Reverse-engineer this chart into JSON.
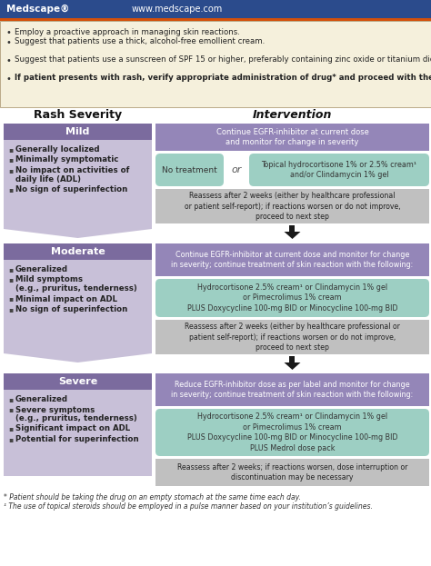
{
  "header_bg": "#2B4B8C",
  "orange_bar": "#D4500A",
  "medscape_text": "Medscape®",
  "website_text": "www.medscape.com",
  "intro_bg": "#F5F0DC",
  "intro_border": "#BBAA88",
  "intro_bullets": [
    "Employ a proactive approach in managing skin reactions.",
    "Suggest that patients use a thick, alcohol-free emollient cream.",
    "Suggest that patients use a sunscreen of SPF 15 or higher, preferably containing zinc oxide or titanium dioxide.",
    "If patient presents with rash, verify appropriate administration of drug* and proceed with the following therapy algorithm."
  ],
  "col_hdr_left": "Rash Severity",
  "col_hdr_right": "Intervention",
  "sev_hdr_color": "#7B6B9E",
  "sev_body_color": "#C8C0D8",
  "sev_hdr_text": "#FFFFFF",
  "mild_header": "Mild",
  "mild_bullets": [
    "Generally localized",
    "Minimally symptomatic",
    "No impact on activities of\ndaily life (ADL)",
    "No sign of superinfection"
  ],
  "moderate_header": "Moderate",
  "moderate_bullets": [
    "Generalized",
    "Mild symptoms\n(e.g., pruritus, tenderness)",
    "Minimal impact on ADL",
    "No sign of superinfection"
  ],
  "severe_header": "Severe",
  "severe_bullets": [
    "Generalized",
    "Severe symptoms\n(e.g., pruritus, tenderness)",
    "Significant impact on ADL",
    "Potential for superinfection"
  ],
  "purple_color": "#9486B8",
  "teal_color": "#9DCFC3",
  "gray_color": "#C0C0C0",
  "mild_purple": "Continue EGFR-inhibitor at current dose\nand monitor for change in severity",
  "mild_teal_left": "No treatment",
  "mild_or": "or",
  "mild_teal_right": "Topical hydrocortisone 1% or 2.5% cream¹\nand/or Clindamycin 1% gel",
  "mild_gray": "Reassess after 2 weeks (either by healthcare professional\nor patient self-report); if reactions worsen or do not improve,\nproceed to next step",
  "moderate_purple": "Continue EGFR-inhibitor at current dose and monitor for change\nin severity; continue treatment of skin reaction with the following:",
  "moderate_teal": "Hydrocortisone 2.5% cream¹ or Clindamycin 1% gel\nor Pimecrolimus 1% cream\nPLUS Doxycycline 100-mg BID or Minocycline 100-mg BID",
  "moderate_gray": "Reassess after 2 weeks (either by healthcare professional or\npatient self-report); if reactions worsen or do not improve,\nproceed to next step",
  "severe_purple": "Reduce EGFR-inhibitor dose as per label and monitor for change\nin severity; continue treatment of skin reaction with the following:",
  "severe_teal": "Hydrocortisone 2.5% cream¹ or Clindamycin 1% gel\nor Pimecrolimus 1% cream\nPLUS Doxycycline 100-mg BID or Minocycline 100-mg BID\nPLUS Medrol dose pack",
  "severe_gray": "Reassess after 2 weeks; if reactions worsen, dose interruption or\ndiscontinuation may be necessary",
  "footnote1": "* Patient should be taking the drug on an empty stomach at the same time each day.",
  "footnote2": "¹ The use of topical steroids should be employed in a pulse manner based on your institution’s guidelines.",
  "bg_color": "#FFFFFF",
  "arrow_color": "#1A1A1A"
}
